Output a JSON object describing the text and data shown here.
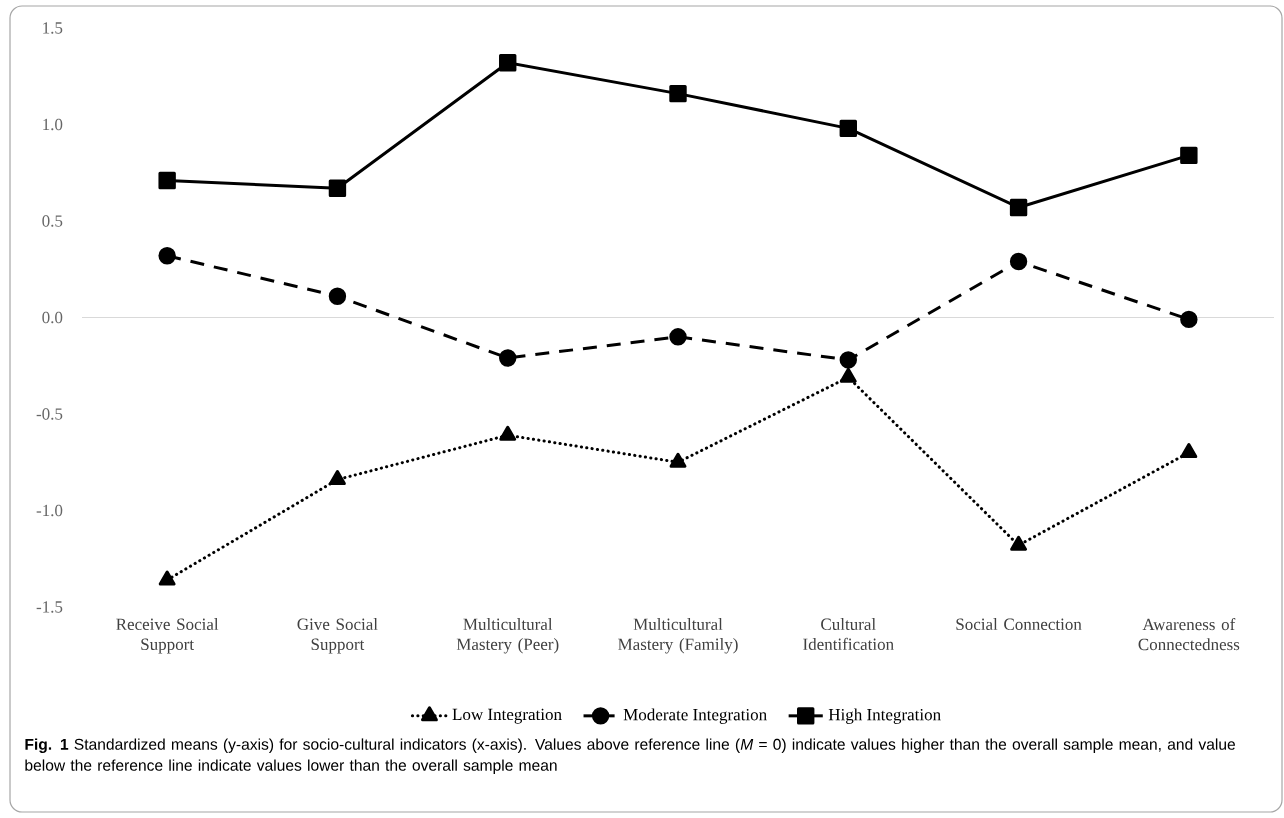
{
  "chart_data": {
    "type": "line",
    "categories": [
      "Receive Social Support",
      "Give Social Support",
      "Multicultural Mastery (Peer)",
      "Multicultural Mastery (Family)",
      "Cultural Identification",
      "Social Connection",
      "Awareness of Connectedness"
    ],
    "series": [
      {
        "name": "Low Integration",
        "color": "#000000",
        "marker": "triangle",
        "line_style": "dotted",
        "values": [
          -1.36,
          -0.84,
          -0.61,
          -0.75,
          -0.31,
          -1.18,
          -0.7
        ]
      },
      {
        "name": "Moderate Integration",
        "color": "#000000",
        "marker": "circle",
        "line_style": "dashed",
        "values": [
          0.32,
          0.11,
          -0.21,
          -0.1,
          -0.22,
          0.29,
          -0.01
        ]
      },
      {
        "name": "High Integration",
        "color": "#000000",
        "marker": "square",
        "line_style": "solid",
        "values": [
          0.71,
          0.67,
          1.32,
          1.16,
          0.98,
          0.57,
          0.84
        ]
      }
    ],
    "ylim": [
      -1.5,
      1.5
    ],
    "yticks": [
      {
        "value": -1.5,
        "label": "-1.5"
      },
      {
        "value": -1,
        "label": "-1.0"
      },
      {
        "value": -0.5,
        "label": "-0.5"
      },
      {
        "value": 0,
        "label": "0.0"
      },
      {
        "value": 0.5,
        "label": "0.5"
      },
      {
        "value": 1,
        "label": "1.0"
      },
      {
        "value": 1.5,
        "label": "1.5"
      }
    ],
    "ref_lines": [
      {
        "axis": "y",
        "value": 0,
        "color": "#d9d9d9"
      }
    ],
    "grid": false,
    "legend": "bottom",
    "annotations": [
      "**Fig. 1** Standardized means (y-axis) for socio-cultural indicators (x-axis). Values above reference line (*M* = 0) indicate values higher than the overall sample mean, and value below the reference line indicate values lower than the overall sample mean"
    ]
  }
}
